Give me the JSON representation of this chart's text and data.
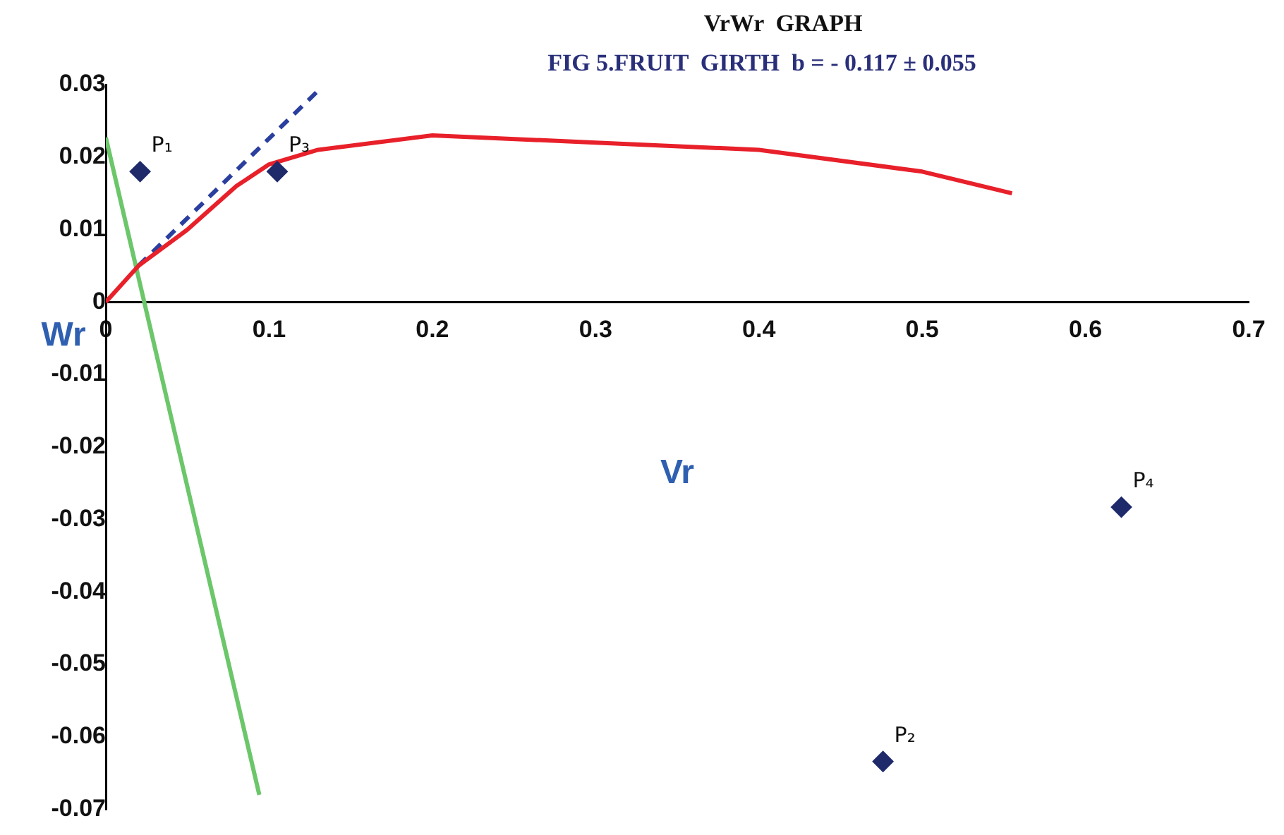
{
  "chart_data": {
    "type": "scatter",
    "title": "VrWr  GRAPH",
    "subtitle": "FIG 5.FRUIT  GIRTH  b = - 0.117 ± 0.055",
    "xlabel": "Vr",
    "ylabel": "Wr",
    "xlim": [
      0,
      0.7
    ],
    "xticks": [
      0,
      0.1,
      0.2,
      0.3,
      0.4,
      0.5,
      0.6,
      0.7
    ],
    "ylim": [
      -0.07,
      0.03
    ],
    "yticks": [
      -0.07,
      -0.06,
      -0.05,
      -0.04,
      -0.03,
      -0.02,
      -0.01,
      0,
      0.01,
      0.02,
      0.03
    ],
    "grid": false,
    "legend": false,
    "series": [
      {
        "marker": "diamond",
        "color": "#1f2a6b",
        "x": [
          0.021,
          0.476,
          0.105,
          0.622
        ],
        "values": [
          0.018,
          -0.0634,
          0.018,
          -0.0283
        ]
      },
      {
        "type": "line",
        "color": "#e8202a",
        "line_style": "solid",
        "x": [
          0,
          0.02,
          0.05,
          0.08,
          0.1,
          0.13,
          0.2,
          0.3,
          0.4,
          0.5,
          0.555
        ],
        "values": [
          0,
          0.005,
          0.01,
          0.016,
          0.019,
          0.021,
          0.023,
          0.022,
          0.021,
          0.018,
          0.015
        ]
      },
      {
        "type": "line",
        "color": "#2a3f9e",
        "line_style": "dashed",
        "x": [
          0.02,
          0.132
        ],
        "values": [
          0.005,
          0.0296
        ]
      },
      {
        "type": "line",
        "color": "#6cc66a",
        "line_style": "solid",
        "x": [
          0,
          0.094
        ],
        "values": [
          0.0227,
          -0.068
        ]
      }
    ],
    "annotations": [
      {
        "text": "P₁",
        "x": 0.021,
        "y": 0.018
      },
      {
        "text": "P₂",
        "x": 0.476,
        "y": -0.0634
      },
      {
        "text": "P₃",
        "x": 0.105,
        "y": 0.018
      },
      {
        "text": "P₄",
        "x": 0.622,
        "y": -0.0283
      }
    ]
  }
}
